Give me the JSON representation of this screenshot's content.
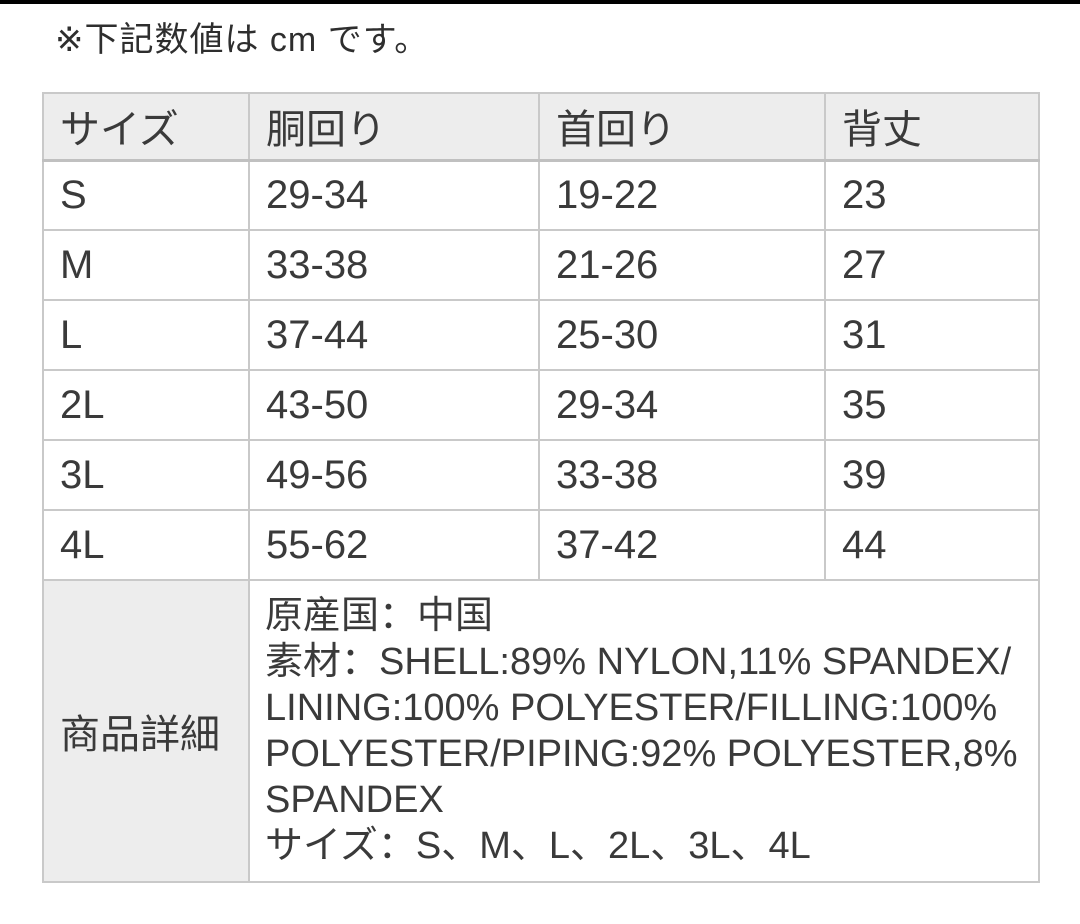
{
  "note": "※下記数値は cm です。",
  "size_table": {
    "columns": [
      "サイズ",
      "胴回り",
      "首回り",
      "背丈"
    ],
    "unit": "cm",
    "rows": [
      {
        "size": "S",
        "waist": "29-34",
        "neck": "19-22",
        "back": "23"
      },
      {
        "size": "M",
        "waist": "33-38",
        "neck": "21-26",
        "back": "27"
      },
      {
        "size": "L",
        "waist": "37-44",
        "neck": "25-30",
        "back": "31"
      },
      {
        "size": "2L",
        "waist": "43-50",
        "neck": "29-34",
        "back": "35"
      },
      {
        "size": "3L",
        "waist": "49-56",
        "neck": "33-38",
        "back": "39"
      },
      {
        "size": "4L",
        "waist": "55-62",
        "neck": "37-42",
        "back": "44"
      }
    ]
  },
  "details": {
    "label": "商品詳細",
    "lines": [
      "原産国：中国",
      "素材：SHELL:89% NYLON,11% SPANDEX/LINING:100% POLYESTER/FILLING:100% POLYESTER/PIPING:92% POLYESTER,8% SPANDEX",
      "サイズ：S、M、L、2L、3L、4L"
    ]
  },
  "colors": {
    "top_bar": "#000000",
    "header_bg": "#ededed",
    "border": "#c9c9c9",
    "text": "#3a3a3a"
  }
}
